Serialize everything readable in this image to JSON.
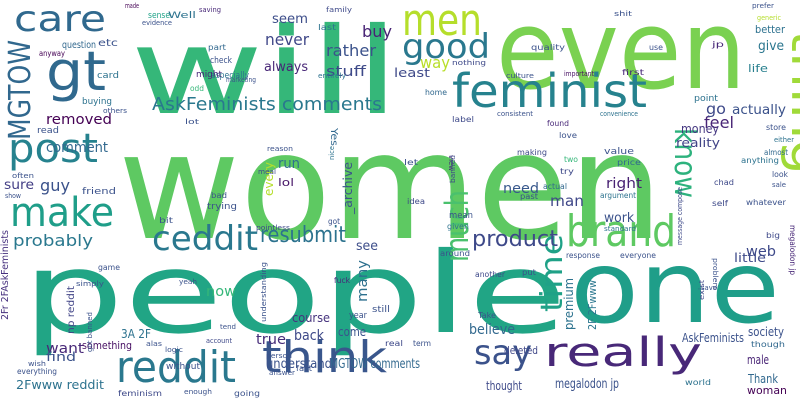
{
  "words": [
    {
      "text": "women",
      "color": "#5ec962"
    },
    {
      "text": "people",
      "color": "#21a585"
    },
    {
      "text": "one",
      "color": "#1f9e89"
    },
    {
      "text": "will",
      "color": "#35b779"
    },
    {
      "text": "even",
      "color": "#7ad151"
    },
    {
      "text": "men",
      "color": "#b5de2b"
    },
    {
      "text": "feminist",
      "color": "#26828e"
    },
    {
      "text": "thing",
      "color": "#a0da39"
    },
    {
      "text": "good",
      "color": "#2a788e"
    },
    {
      "text": "gt",
      "color": "#30698e"
    },
    {
      "text": "care",
      "color": "#30698e"
    },
    {
      "text": "MGTOW",
      "color": "#31688e"
    },
    {
      "text": "post",
      "color": "#26828e"
    },
    {
      "text": "make",
      "color": "#1f9e89"
    },
    {
      "text": "ceddit",
      "color": "#2a788e"
    },
    {
      "text": "brand",
      "color": "#5ec962"
    },
    {
      "text": "know",
      "color": "#2db27d"
    },
    {
      "text": "time",
      "color": "#1fa187"
    },
    {
      "text": "much",
      "color": "#4ac16d"
    },
    {
      "text": "reddit",
      "color": "#2a788e"
    },
    {
      "text": "think",
      "color": "#39568c"
    },
    {
      "text": "say",
      "color": "#3b528b"
    },
    {
      "text": "really",
      "color": "#482878"
    },
    {
      "text": "AskFeminists comments",
      "color": "#2a788e"
    },
    {
      "text": "resubmit",
      "color": "#2c728e"
    },
    {
      "text": "product",
      "color": "#3e4989"
    },
    {
      "text": "never",
      "color": "#3f4788"
    },
    {
      "text": "buy",
      "color": "#482475"
    },
    {
      "text": "rather",
      "color": "#3b528b"
    },
    {
      "text": "stuff",
      "color": "#3e4a89"
    },
    {
      "text": "always",
      "color": "#482777"
    },
    {
      "text": "seem",
      "color": "#3d4e8a"
    },
    {
      "text": "way",
      "color": "#b8de29"
    },
    {
      "text": "least",
      "color": "#3e4989"
    },
    {
      "text": "feel",
      "color": "#482576"
    },
    {
      "text": "removed",
      "color": "#440154"
    },
    {
      "text": "comment",
      "color": "#31688e"
    },
    {
      "text": "probably",
      "color": "#2a788e"
    },
    {
      "text": "sure",
      "color": "#433e85"
    },
    {
      "text": "guy",
      "color": "#3b528b"
    },
    {
      "text": "need",
      "color": "#38588c"
    },
    {
      "text": "man",
      "color": "#3f4788"
    },
    {
      "text": "right",
      "color": "#482173"
    },
    {
      "text": "money",
      "color": "#453781"
    },
    {
      "text": "reality",
      "color": "#404387"
    },
    {
      "text": "go",
      "color": "#3e4989"
    },
    {
      "text": "actually",
      "color": "#3b528b"
    },
    {
      "text": "give",
      "color": "#2a768e"
    },
    {
      "text": "better",
      "color": "#2c718e"
    },
    {
      "text": "life",
      "color": "#277f8e"
    },
    {
      "text": "web",
      "color": "#3e4989"
    },
    {
      "text": "work",
      "color": "#3b528b"
    },
    {
      "text": "see",
      "color": "#3d4e8a"
    },
    {
      "text": "many",
      "color": "#2d708e"
    },
    {
      "text": "now",
      "color": "#35b779"
    },
    {
      "text": "believe",
      "color": "#31688e"
    },
    {
      "text": "premium",
      "color": "#2c728e"
    },
    {
      "text": "true",
      "color": "#472c7a"
    },
    {
      "text": "run",
      "color": "#2d708e"
    },
    {
      "text": "lol",
      "color": "#481769"
    },
    {
      "text": "every",
      "color": "#b5de2b"
    },
    {
      "text": "back",
      "color": "#3e4989"
    },
    {
      "text": "course",
      "color": "#46337e"
    },
    {
      "text": "come",
      "color": "#3a548c"
    },
    {
      "text": "want",
      "color": "#482878"
    },
    {
      "text": "find",
      "color": "#3b528b"
    },
    {
      "text": "something",
      "color": "#471063"
    },
    {
      "text": "understand",
      "color": "#3b528b"
    },
    {
      "text": "MGTOW comments",
      "color": "#31688e"
    },
    {
      "text": "thought",
      "color": "#3e4989"
    },
    {
      "text": "deleted",
      "color": "#3f4788"
    },
    {
      "text": "megalodon jp",
      "color": "#3b528b"
    },
    {
      "text": "AskFeminists",
      "color": "#3b528b"
    },
    {
      "text": "Thank",
      "color": "#31688e"
    },
    {
      "text": "male",
      "color": "#482475"
    },
    {
      "text": "woman",
      "color": "#440154"
    },
    {
      "text": "society",
      "color": "#3b528b"
    },
    {
      "text": "little",
      "color": "#3e4a89"
    },
    {
      "text": "2Fwww reddit",
      "color": "#2c728e"
    },
    {
      "text": "np reddit",
      "color": "#414487"
    },
    {
      "text": "3A 2F",
      "color": "#2c728e"
    },
    {
      "text": "2F 2Fwww",
      "color": "#2a768e"
    },
    {
      "text": "2Fr 2FAskFeminists",
      "color": "#46307e"
    },
    {
      "text": "_archive",
      "color": "#3b528b"
    },
    {
      "text": "Yes",
      "color": "#31688e"
    },
    {
      "text": "question",
      "color": "#31688e"
    },
    {
      "text": "etc",
      "color": "#3b528b"
    },
    {
      "text": "buying",
      "color": "#2c728e"
    },
    {
      "text": "card",
      "color": "#2c728e"
    },
    {
      "text": "read",
      "color": "#3b528b"
    },
    {
      "text": "anyway",
      "color": "#440154"
    },
    {
      "text": "sense",
      "color": "#1fa187"
    },
    {
      "text": "Well",
      "color": "#2c728e"
    },
    {
      "text": "check",
      "color": "#3b528b"
    },
    {
      "text": "especially",
      "color": "#2c728e"
    },
    {
      "text": "part",
      "color": "#31688e"
    },
    {
      "text": "might",
      "color": "#482878"
    },
    {
      "text": "odd",
      "color": "#35b779"
    },
    {
      "text": "marketing",
      "color": "#3b528b"
    },
    {
      "text": "entirely",
      "color": "#2c728e"
    },
    {
      "text": "last",
      "color": "#2c728e"
    },
    {
      "text": "family",
      "color": "#3e4989"
    },
    {
      "text": "saving",
      "color": "#482878"
    },
    {
      "text": "made",
      "color": "#440154"
    },
    {
      "text": "evidence",
      "color": "#3b528b"
    },
    {
      "text": "home",
      "color": "#31688e"
    },
    {
      "text": "nothing",
      "color": "#3e4989"
    },
    {
      "text": "quality",
      "color": "#3b528b"
    },
    {
      "text": "culture",
      "color": "#3b528b"
    },
    {
      "text": "important",
      "color": "#471063"
    },
    {
      "text": "first",
      "color": "#482878"
    },
    {
      "text": "shit",
      "color": "#3b528b"
    },
    {
      "text": "prefer",
      "color": "#3b528b"
    },
    {
      "text": "generic",
      "color": "#b5de2b"
    },
    {
      "text": "use",
      "color": "#3b528b"
    },
    {
      "text": "jp",
      "color": "#482878"
    },
    {
      "text": "store",
      "color": "#3b528b"
    },
    {
      "text": "either",
      "color": "#2c728e"
    },
    {
      "text": "almost",
      "color": "#31688e"
    },
    {
      "text": "look",
      "color": "#3b528b"
    },
    {
      "text": "sale",
      "color": "#3b528b"
    },
    {
      "text": "whatever",
      "color": "#3b528b"
    },
    {
      "text": "chad",
      "color": "#3e4989"
    },
    {
      "text": "self",
      "color": "#3e4989"
    },
    {
      "text": "anything",
      "color": "#2c728e"
    },
    {
      "text": "point",
      "color": "#2c728e"
    },
    {
      "text": "convenience",
      "color": "#2c728e"
    },
    {
      "text": "consistent",
      "color": "#3b528b"
    },
    {
      "text": "label",
      "color": "#3e4989"
    },
    {
      "text": "found",
      "color": "#482878"
    },
    {
      "text": "love",
      "color": "#3b528b"
    },
    {
      "text": "value",
      "color": "#3b528b"
    },
    {
      "text": "price",
      "color": "#31688e"
    },
    {
      "text": "argument",
      "color": "#2c728e"
    },
    {
      "text": "two",
      "color": "#35b779"
    },
    {
      "text": "try",
      "color": "#3e4989"
    },
    {
      "text": "actual",
      "color": "#31688e"
    },
    {
      "text": "past",
      "color": "#3b528b"
    },
    {
      "text": "making",
      "color": "#3e4989"
    },
    {
      "text": "view",
      "color": "#482878"
    },
    {
      "text": "let",
      "color": "#3b528b"
    },
    {
      "text": "idea",
      "color": "#3e4989"
    },
    {
      "text": "banned",
      "color": "#3e4989"
    },
    {
      "text": "mean",
      "color": "#3b528b"
    },
    {
      "text": "given",
      "color": "#2c728e"
    },
    {
      "text": "around",
      "color": "#3b528b"
    },
    {
      "text": "another",
      "color": "#3e4989"
    },
    {
      "text": "put",
      "color": "#3b528b"
    },
    {
      "text": "response",
      "color": "#3b528b"
    },
    {
      "text": "everyone",
      "color": "#3b528b"
    },
    {
      "text": "standard",
      "color": "#2c728e"
    },
    {
      "text": "message compose",
      "color": "#3e4989"
    },
    {
      "text": "problem",
      "color": "#3b528b"
    },
    {
      "text": "megalodon jp",
      "color": "#482878"
    },
    {
      "text": "big",
      "color": "#3e4989"
    },
    {
      "text": "save",
      "color": "#3b528b"
    },
    {
      "text": "exist",
      "color": "#3e4989"
    },
    {
      "text": "Take",
      "color": "#3b528b"
    },
    {
      "text": "real",
      "color": "#3e4989"
    },
    {
      "text": "term",
      "color": "#3b528b"
    },
    {
      "text": "world",
      "color": "#2c728e"
    },
    {
      "text": "though",
      "color": "#31688e"
    },
    {
      "text": "still",
      "color": "#3b528b"
    },
    {
      "text": "year",
      "color": "#3b528b"
    },
    {
      "text": "fuck",
      "color": "#482878"
    },
    {
      "text": "pointless",
      "color": "#3e4989"
    },
    {
      "text": "got",
      "color": "#3b528b"
    },
    {
      "text": "bit",
      "color": "#3b528b"
    },
    {
      "text": "trying",
      "color": "#3b528b"
    },
    {
      "text": "bad",
      "color": "#3b528b"
    },
    {
      "text": "meal",
      "color": "#3e4989"
    },
    {
      "text": "nice",
      "color": "#2c728e"
    },
    {
      "text": "reason",
      "color": "#3b528b"
    },
    {
      "text": "friend",
      "color": "#3b528b"
    },
    {
      "text": "game",
      "color": "#3b528b"
    },
    {
      "text": "simply",
      "color": "#3b528b"
    },
    {
      "text": "yeah",
      "color": "#3b528b"
    },
    {
      "text": "tend",
      "color": "#3b528b"
    },
    {
      "text": "account",
      "color": "#3e4989"
    },
    {
      "text": "logic",
      "color": "#3b528b"
    },
    {
      "text": "without",
      "color": "#3b528b"
    },
    {
      "text": "understanding",
      "color": "#3b528b"
    },
    {
      "text": "fact",
      "color": "#3b528b"
    },
    {
      "text": "going",
      "color": "#3b528b"
    },
    {
      "text": "person",
      "color": "#3b528b"
    },
    {
      "text": "answer",
      "color": "#3b528b"
    },
    {
      "text": "enough",
      "color": "#3b528b"
    },
    {
      "text": "feminism",
      "color": "#3e4989"
    },
    {
      "text": "everything",
      "color": "#3b528b"
    },
    {
      "text": "got banned",
      "color": "#3b528b"
    },
    {
      "text": "others",
      "color": "#3b528b"
    },
    {
      "text": "often",
      "color": "#3b528b"
    },
    {
      "text": "show",
      "color": "#3b528b"
    },
    {
      "text": "lot",
      "color": "#3b528b"
    },
    {
      "text": "alas",
      "color": "#3b528b"
    },
    {
      "text": "wish",
      "color": "#3b528b"
    }
  ]
}
